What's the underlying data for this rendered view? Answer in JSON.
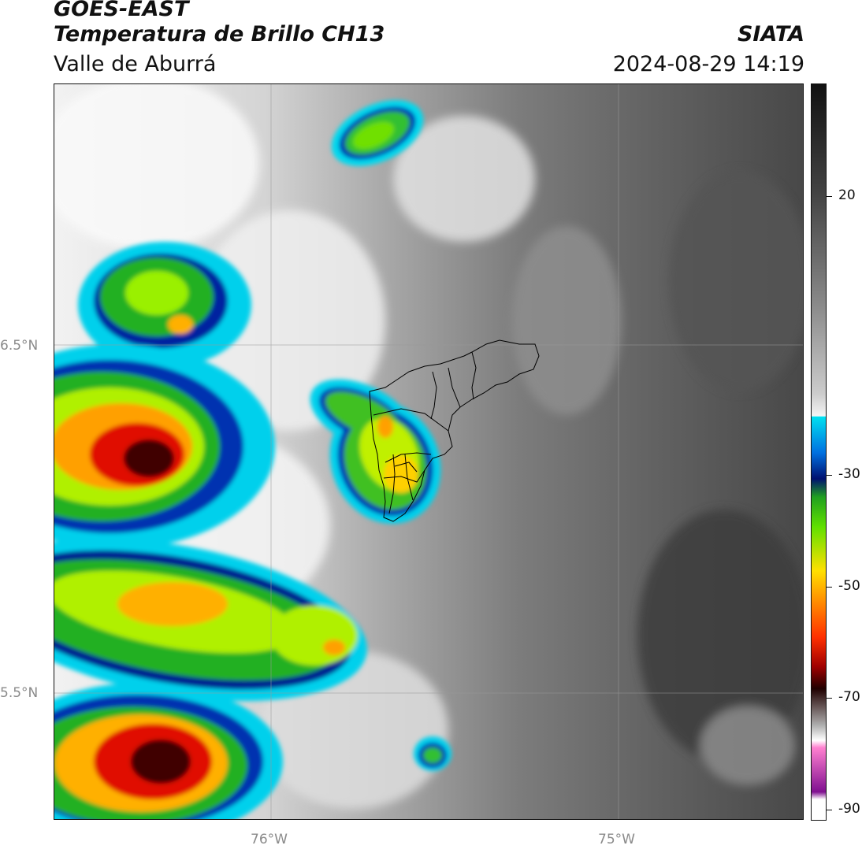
{
  "header": {
    "title_line1": "GOES-EAST",
    "title_line2": "Temperatura de Brillo CH13",
    "region": "Valle de Aburrá",
    "agency": "SIATA",
    "timestamp": "2024-08-29 14:19"
  },
  "map": {
    "lat_labels": [
      "6.5°N",
      "5.5°N"
    ],
    "lon_labels": [
      "76°W",
      "75°W"
    ],
    "background_colors": {
      "warm_dark": "#4a4a4a",
      "warm_mid": "#7a7a7a",
      "cold_light": "#eeeeee"
    }
  },
  "colorbar": {
    "ticks": [
      "20",
      "-30",
      "-50",
      "-70",
      "-90"
    ],
    "colors": {
      "cyan": "#00e0f0",
      "blue": "#0040d0",
      "navy": "#001070",
      "green": "#20c020",
      "lime": "#a0f000",
      "yellow": "#ffe000",
      "orange": "#ff8000",
      "red": "#e00000",
      "darkred": "#400000",
      "pink": "#ff60c0",
      "purple": "#801090"
    }
  }
}
